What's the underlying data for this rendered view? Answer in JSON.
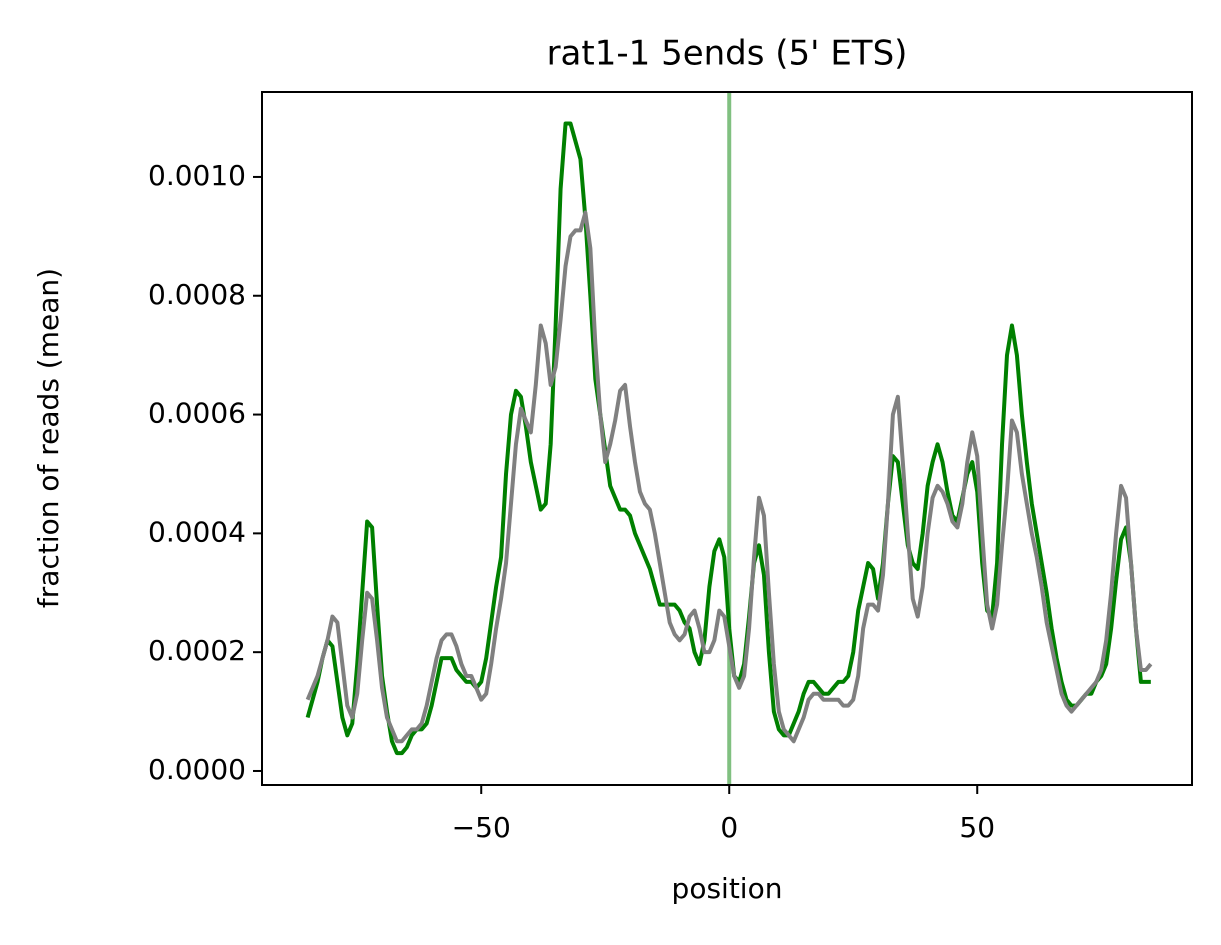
{
  "chart_data": {
    "type": "line",
    "title": "rat1-1 5ends (5' ETS)",
    "xlabel": "position",
    "ylabel": "fraction of reads (mean)",
    "x": [
      -85,
      -84,
      -83,
      -82,
      -81,
      -80,
      -79,
      -78,
      -77,
      -76,
      -75,
      -74,
      -73,
      -72,
      -71,
      -70,
      -69,
      -68,
      -67,
      -66,
      -65,
      -64,
      -63,
      -62,
      -61,
      -60,
      -59,
      -58,
      -57,
      -56,
      -55,
      -54,
      -53,
      -52,
      -51,
      -50,
      -49,
      -48,
      -47,
      -46,
      -45,
      -44,
      -43,
      -42,
      -41,
      -40,
      -39,
      -38,
      -37,
      -36,
      -35,
      -34,
      -33,
      -32,
      -31,
      -30,
      -29,
      -28,
      -27,
      -26,
      -25,
      -24,
      -23,
      -22,
      -21,
      -20,
      -19,
      -18,
      -17,
      -16,
      -15,
      -14,
      -13,
      -12,
      -11,
      -10,
      -9,
      -8,
      -7,
      -6,
      -5,
      -4,
      -3,
      -2,
      -1,
      0,
      1,
      2,
      3,
      4,
      5,
      6,
      7,
      8,
      9,
      10,
      11,
      12,
      13,
      14,
      15,
      16,
      17,
      18,
      19,
      20,
      21,
      22,
      23,
      24,
      25,
      26,
      27,
      28,
      29,
      30,
      31,
      32,
      33,
      34,
      35,
      36,
      37,
      38,
      39,
      40,
      41,
      42,
      43,
      44,
      45,
      46,
      47,
      48,
      49,
      50,
      51,
      52,
      53,
      54,
      55,
      56,
      57,
      58,
      59,
      60,
      61,
      62,
      63,
      64,
      65,
      66,
      67,
      68,
      69,
      70,
      71,
      72,
      73,
      74,
      75,
      76,
      77,
      78,
      79,
      80,
      81,
      82,
      83,
      84,
      85
    ],
    "series": [
      {
        "color": "#008000",
        "values": [
          9e-05,
          0.00012,
          0.00015,
          0.00019,
          0.00022,
          0.00021,
          0.00015,
          9e-05,
          6e-05,
          8e-05,
          0.00018,
          0.0003,
          0.00042,
          0.00041,
          0.00028,
          0.00016,
          0.0001,
          5e-05,
          3e-05,
          3e-05,
          4e-05,
          6e-05,
          7e-05,
          7e-05,
          8e-05,
          0.00011,
          0.00015,
          0.00019,
          0.00019,
          0.00019,
          0.00017,
          0.00016,
          0.00015,
          0.00015,
          0.00014,
          0.00015,
          0.00019,
          0.00025,
          0.00031,
          0.00036,
          0.0005,
          0.0006,
          0.00064,
          0.00063,
          0.00058,
          0.00052,
          0.00048,
          0.00044,
          0.00045,
          0.00055,
          0.00075,
          0.00098,
          0.00109,
          0.00109,
          0.00106,
          0.00103,
          0.00093,
          0.0008,
          0.00066,
          0.0006,
          0.00054,
          0.00048,
          0.00046,
          0.00044,
          0.00044,
          0.00043,
          0.0004,
          0.00038,
          0.00036,
          0.00034,
          0.00031,
          0.00028,
          0.00028,
          0.00028,
          0.00028,
          0.00027,
          0.00025,
          0.00024,
          0.0002,
          0.00018,
          0.00022,
          0.00031,
          0.00037,
          0.00039,
          0.00036,
          0.00024,
          0.00016,
          0.00015,
          0.00018,
          0.00026,
          0.00035,
          0.00038,
          0.00033,
          0.0002,
          0.0001,
          7e-05,
          6e-05,
          6e-05,
          8e-05,
          0.0001,
          0.00013,
          0.00015,
          0.00015,
          0.00014,
          0.00013,
          0.00013,
          0.00014,
          0.00015,
          0.00015,
          0.00016,
          0.0002,
          0.00027,
          0.00031,
          0.00035,
          0.00034,
          0.00029,
          0.00035,
          0.00045,
          0.00053,
          0.00052,
          0.00045,
          0.00038,
          0.00035,
          0.00034,
          0.0004,
          0.00048,
          0.00052,
          0.00055,
          0.00052,
          0.00047,
          0.00043,
          0.00042,
          0.00046,
          0.0005,
          0.00052,
          0.00047,
          0.00035,
          0.00027,
          0.00026,
          0.00035,
          0.00055,
          0.0007,
          0.00075,
          0.0007,
          0.0006,
          0.00052,
          0.00045,
          0.0004,
          0.00035,
          0.0003,
          0.00024,
          0.00019,
          0.00015,
          0.00012,
          0.00011,
          0.00011,
          0.00012,
          0.00013,
          0.00013,
          0.00015,
          0.00016,
          0.00018,
          0.00024,
          0.00032,
          0.00039,
          0.00041,
          0.00035,
          0.00024,
          0.00015,
          0.00015,
          0.00015
        ]
      },
      {
        "color": "#808080",
        "values": [
          0.00012,
          0.00014,
          0.00016,
          0.00019,
          0.00022,
          0.00026,
          0.00025,
          0.00018,
          0.00011,
          9e-05,
          0.00013,
          0.00022,
          0.0003,
          0.00029,
          0.00022,
          0.00014,
          9e-05,
          7e-05,
          5e-05,
          5e-05,
          6e-05,
          7e-05,
          7e-05,
          8e-05,
          0.00011,
          0.00015,
          0.00019,
          0.00022,
          0.00023,
          0.00023,
          0.00021,
          0.00018,
          0.00016,
          0.00016,
          0.00014,
          0.00012,
          0.00013,
          0.00018,
          0.00024,
          0.00029,
          0.00035,
          0.00045,
          0.00055,
          0.00061,
          0.00059,
          0.00057,
          0.00065,
          0.00075,
          0.00072,
          0.00065,
          0.00068,
          0.00076,
          0.00085,
          0.0009,
          0.00091,
          0.00091,
          0.00094,
          0.00088,
          0.00072,
          0.0006,
          0.00052,
          0.00055,
          0.00059,
          0.00064,
          0.00065,
          0.00058,
          0.00052,
          0.00047,
          0.00045,
          0.00044,
          0.0004,
          0.00035,
          0.0003,
          0.00025,
          0.00023,
          0.00022,
          0.00023,
          0.00026,
          0.00027,
          0.00024,
          0.0002,
          0.0002,
          0.00022,
          0.00027,
          0.00026,
          0.00021,
          0.00016,
          0.00014,
          0.00016,
          0.00024,
          0.00036,
          0.00046,
          0.00043,
          0.0003,
          0.00018,
          0.0001,
          7e-05,
          6e-05,
          5e-05,
          7e-05,
          9e-05,
          0.00012,
          0.00013,
          0.00013,
          0.00012,
          0.00012,
          0.00012,
          0.00012,
          0.00011,
          0.00011,
          0.00012,
          0.00016,
          0.00024,
          0.00028,
          0.00028,
          0.00027,
          0.00033,
          0.00045,
          0.0006,
          0.00063,
          0.00052,
          0.0004,
          0.00029,
          0.00026,
          0.00031,
          0.0004,
          0.00046,
          0.00048,
          0.00047,
          0.00045,
          0.00042,
          0.00041,
          0.00045,
          0.00052,
          0.00057,
          0.00053,
          0.0004,
          0.00028,
          0.00024,
          0.00028,
          0.00038,
          0.00047,
          0.00059,
          0.00057,
          0.0005,
          0.00045,
          0.0004,
          0.00036,
          0.00031,
          0.00025,
          0.00021,
          0.00017,
          0.00013,
          0.00011,
          0.0001,
          0.00011,
          0.00012,
          0.00013,
          0.00014,
          0.00015,
          0.00017,
          0.00022,
          0.0003,
          0.0004,
          0.00048,
          0.00046,
          0.00035,
          0.00024,
          0.00017,
          0.00017,
          0.00018
        ]
      }
    ],
    "vline_x": 0,
    "vline_color": "#80c080",
    "xlim": [
      -94.2,
      93.3
    ],
    "ylim": [
      -2.36e-05,
      0.001143
    ],
    "xticks": [
      {
        "value": -50,
        "label": "−50"
      },
      0,
      50
    ],
    "yticks": [
      {
        "value": 0,
        "label": "0.0000"
      },
      {
        "value": 0.0002,
        "label": "0.0002"
      },
      {
        "value": 0.0004,
        "label": "0.0004"
      },
      {
        "value": 0.0006,
        "label": "0.0006"
      },
      {
        "value": 0.0008,
        "label": "0.0008"
      },
      {
        "value": 0.001,
        "label": "0.0010"
      }
    ],
    "grid": false
  }
}
